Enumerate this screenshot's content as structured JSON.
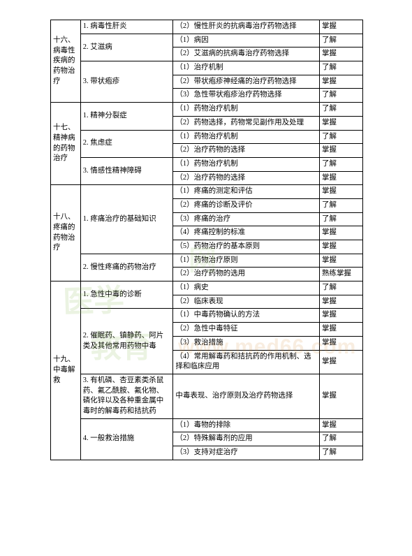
{
  "sections": [
    {
      "id": "s16",
      "label": "十六、病毒性疾病的药物治疗",
      "rowspan": 6,
      "topics": [
        {
          "id": "t16_1",
          "label": "1. 病毒性肝炎",
          "rowspan": 1,
          "rows": [
            {
              "c3": "（2）慢性肝炎的抗病毒治疗药物选择",
              "c4": "掌握"
            }
          ]
        },
        {
          "id": "t16_2",
          "label": "2. 艾滋病",
          "rowspan": 2,
          "rows": [
            {
              "c3": "（1）病因",
              "c4": "了解"
            },
            {
              "c3": "（2）艾滋病的抗病毒治疗药物选择",
              "c4": "掌握"
            }
          ]
        },
        {
          "id": "t16_3",
          "label": "3. 带状疱疹",
          "rowspan": 3,
          "rows": [
            {
              "c3": "（1）治疗机制",
              "c4": "了解"
            },
            {
              "c3": "（2）带状疱疹神经痛的治疗药物选择",
              "c4": "掌握"
            },
            {
              "c3": "（3）急性带状疱疹治疗药物选择",
              "c4": "了解"
            }
          ]
        }
      ]
    },
    {
      "id": "s17",
      "label": "十七、精神病的药物治疗",
      "rowspan": 6,
      "topics": [
        {
          "id": "t17_1",
          "label": "1. 精神分裂症",
          "rowspan": 2,
          "rows": [
            {
              "c3": "（1）药物治疗机制",
              "c4": "了解"
            },
            {
              "c3": "（2）药物选择，药物常见副作用及处理",
              "c4": "掌握"
            }
          ]
        },
        {
          "id": "t17_2",
          "label": "2. 焦虑症",
          "rowspan": 2,
          "rows": [
            {
              "c3": "（1）药物治疗机制",
              "c4": "了解"
            },
            {
              "c3": "（2）治疗药物的选择",
              "c4": "掌握"
            }
          ]
        },
        {
          "id": "t17_3",
          "label": "3. 情感性精神障碍",
          "rowspan": 2,
          "rows": [
            {
              "c3": "（1）药物治疗机制",
              "c4": "了解"
            },
            {
              "c3": "（2）治疗药物的选择",
              "c4": "掌握"
            }
          ]
        }
      ]
    },
    {
      "id": "s18",
      "label": "十八、疼痛的药物治疗",
      "rowspan": 7,
      "topics": [
        {
          "id": "t18_1",
          "label": "1. 疼痛治疗的基础知识",
          "rowspan": 5,
          "rows": [
            {
              "c3": "（1）疼痛的测定和评估",
              "c4": "掌握"
            },
            {
              "c3": "（2）疼痛的诊断及评价",
              "c4": "了解"
            },
            {
              "c3": "（3）疼痛的治疗",
              "c4": "了解"
            },
            {
              "c3": "（4）疼痛控制的标准",
              "c4": "掌握"
            },
            {
              "c3": "（5）药物治疗的基本原则",
              "c4": "掌握"
            }
          ]
        },
        {
          "id": "t18_2",
          "label": "2. 慢性疼痛的药物治疗",
          "rowspan": 2,
          "rows": [
            {
              "c3": "（1）药物治疗原则",
              "c4": "掌握"
            },
            {
              "c3": "（2）治疗药物的选用",
              "c4": "熟练掌握"
            }
          ]
        }
      ]
    },
    {
      "id": "s19",
      "label": "十九、中毒解救",
      "rowspan": 10,
      "topics": [
        {
          "id": "t19_1",
          "label": "1. 急性中毒的诊断",
          "rowspan": 2,
          "rows": [
            {
              "c3": "（1）病史",
              "c4": "了解"
            },
            {
              "c3": "（2）临床表现",
              "c4": "掌握"
            }
          ]
        },
        {
          "id": "t19_2",
          "label": "2.  催眠药、镇静药、阿片类及其他常用药物中毒",
          "rowspan": 4,
          "rows": [
            {
              "c3": "（1）中毒药物确认的方法",
              "c4": "掌握"
            },
            {
              "c3": "（2）急性中毒特征",
              "c4": "掌握"
            },
            {
              "c3": "（3）救治措施",
              "c4": "掌握"
            },
            {
              "c3": "（4）常用解毒药和拮抗药的作用机制、选择和临床应用",
              "c4": "掌握"
            }
          ]
        },
        {
          "id": "t19_3",
          "label": "3.  有机磷、杏豆素类杀鼠药、氟乙酰胺、氟化物、磷化锌以及各种重金属中毒时的解毒药和拮抗药",
          "rowspan": 1,
          "rows": [
            {
              "c3": "中毒表现、治疗原则及治疗药物选择",
              "c4": "掌握"
            }
          ]
        },
        {
          "id": "t19_4",
          "label": "4.  一般救治措施",
          "rowspan": 3,
          "rows": [
            {
              "c3": "（1）毒物的排除",
              "c4": "掌握"
            },
            {
              "c3": "（2）特殊解毒剂的应用",
              "c4": "了解"
            },
            {
              "c3": "（3）支持对症治疗",
              "c4": "了解"
            }
          ]
        }
      ]
    }
  ]
}
